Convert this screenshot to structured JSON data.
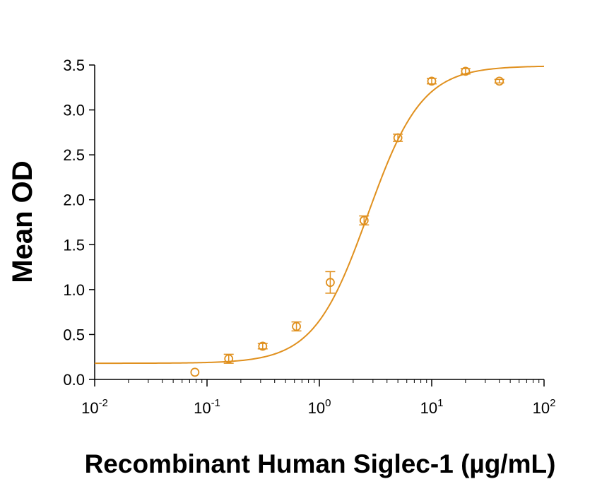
{
  "chart_data": {
    "type": "scatter",
    "title": "",
    "xlabel": "Recombinant Human Siglec-1 (µg/mL)",
    "ylabel": "Mean OD",
    "x_scale": "log",
    "xlim": [
      0.01,
      100
    ],
    "ylim": [
      0.0,
      3.5
    ],
    "grid": false,
    "legend": "none",
    "color": "#E0901E",
    "y_ticks": [
      "0.0",
      "0.5",
      "1.0",
      "1.5",
      "2.0",
      "2.5",
      "3.0",
      "3.5"
    ],
    "x_ticks": [
      {
        "base": "10",
        "exp": "-2",
        "value": 0.01
      },
      {
        "base": "10",
        "exp": "-1",
        "value": 0.1
      },
      {
        "base": "10",
        "exp": "0",
        "value": 1
      },
      {
        "base": "10",
        "exp": "1",
        "value": 10
      },
      {
        "base": "10",
        "exp": "2",
        "value": 100
      }
    ],
    "points": [
      {
        "x": 0.078,
        "y": 0.08,
        "err": 0.0
      },
      {
        "x": 0.156,
        "y": 0.23,
        "err": 0.05
      },
      {
        "x": 0.313,
        "y": 0.37,
        "err": 0.03
      },
      {
        "x": 0.625,
        "y": 0.59,
        "err": 0.05
      },
      {
        "x": 1.25,
        "y": 1.08,
        "err": 0.12
      },
      {
        "x": 2.5,
        "y": 1.77,
        "err": 0.05
      },
      {
        "x": 5.0,
        "y": 2.69,
        "err": 0.04
      },
      {
        "x": 10.0,
        "y": 3.32,
        "err": 0.03
      },
      {
        "x": 20.0,
        "y": 3.43,
        "err": 0.03
      },
      {
        "x": 40.0,
        "y": 3.32,
        "err": 0.02
      }
    ],
    "fit": {
      "bottom": 0.18,
      "top": 3.49,
      "ec50": 2.7,
      "hill": 1.8
    }
  }
}
